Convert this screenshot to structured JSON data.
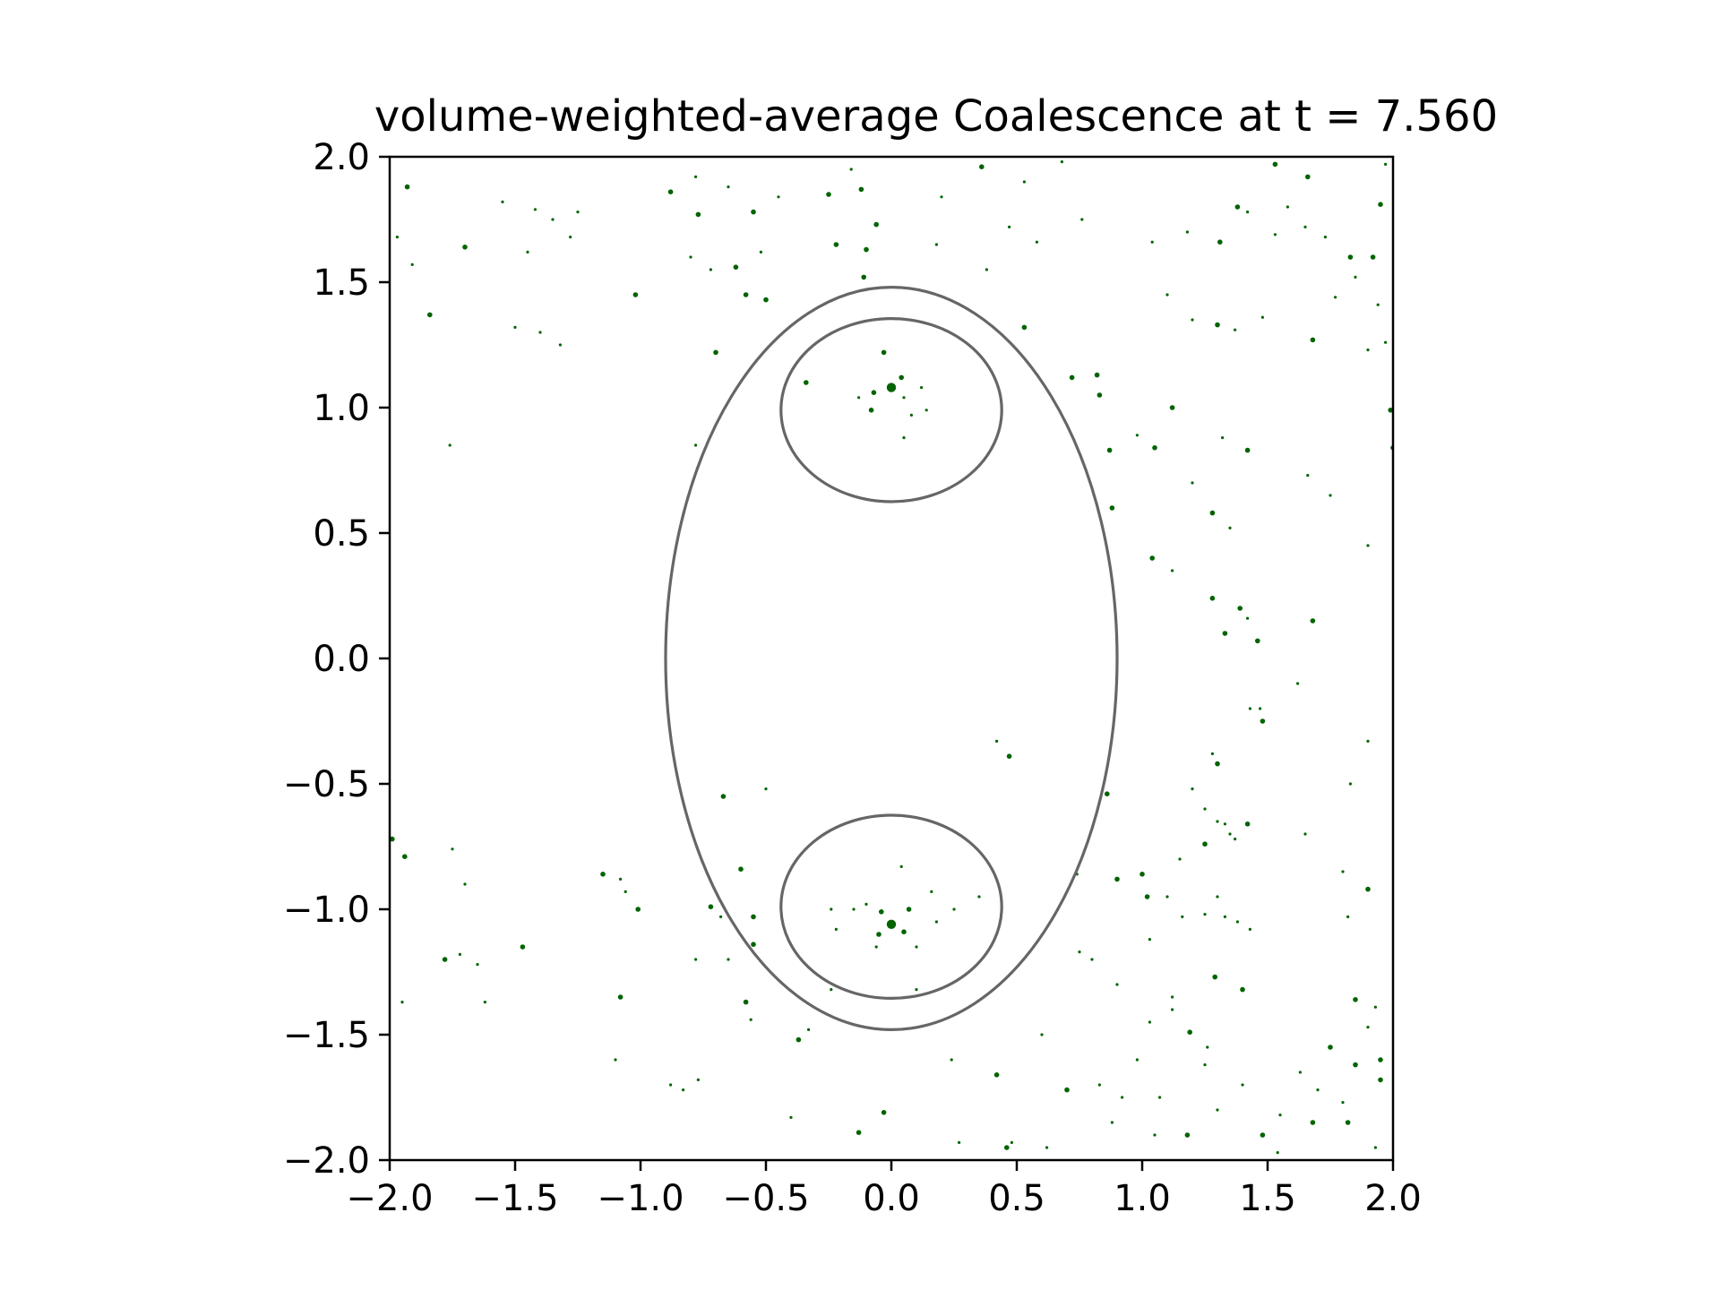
{
  "chart_data": {
    "type": "scatter",
    "title": "volume-weighted-average Coalescence at t = 7.560",
    "xlabel": "",
    "ylabel": "",
    "xlim": [
      -2.0,
      2.0
    ],
    "ylim": [
      -2.0,
      2.0
    ],
    "grid": false,
    "aspect": "equal",
    "x_ticks": [
      -2.0,
      -1.5,
      -1.0,
      -0.5,
      0.0,
      0.5,
      1.0,
      1.5,
      2.0
    ],
    "x_tick_labels": [
      "−2.0",
      "−1.5",
      "−1.0",
      "−0.5",
      "0.0",
      "0.5",
      "1.0",
      "1.5",
      "2.0"
    ],
    "y_ticks": [
      2.0,
      1.5,
      1.0,
      0.5,
      0.0,
      -0.5,
      -1.0,
      -1.5,
      -2.0
    ],
    "y_tick_labels": [
      "2.0",
      "1.5",
      "1.0",
      "0.5",
      "0.0",
      "−0.5",
      "−1.0",
      "−1.5",
      "−2.0"
    ],
    "point_color": "#006400",
    "outline_color": "#666666",
    "outlines": [
      {
        "shape": "ellipse",
        "cx": 0.0,
        "cy": 0.0,
        "rx": 0.9,
        "ry": 1.48
      },
      {
        "shape": "ellipse",
        "cx": 0.0,
        "cy": 0.99,
        "rx": 0.44,
        "ry": 0.365
      },
      {
        "shape": "ellipse",
        "cx": 0.0,
        "cy": -0.99,
        "rx": 0.44,
        "ry": 0.365
      }
    ],
    "points": [
      {
        "x": 0.0,
        "y": 1.08,
        "w": 3
      },
      {
        "x": -0.07,
        "y": 1.06,
        "w": 2
      },
      {
        "x": 0.04,
        "y": 1.12,
        "w": 2
      },
      {
        "x": -0.08,
        "y": 0.99,
        "w": 2
      },
      {
        "x": -0.03,
        "y": 1.22,
        "w": 2
      },
      {
        "x": -0.13,
        "y": 1.04,
        "w": 1
      },
      {
        "x": 0.05,
        "y": 1.04,
        "w": 1
      },
      {
        "x": 0.08,
        "y": 0.97,
        "w": 1
      },
      {
        "x": 0.05,
        "y": 0.88,
        "w": 1
      },
      {
        "x": 0.12,
        "y": 1.08,
        "w": 1
      },
      {
        "x": 0.14,
        "y": 0.99,
        "w": 1
      },
      {
        "x": 0.0,
        "y": -1.06,
        "w": 3
      },
      {
        "x": -0.04,
        "y": -1.01,
        "w": 2
      },
      {
        "x": 0.07,
        "y": -1.0,
        "w": 2
      },
      {
        "x": -0.05,
        "y": -1.1,
        "w": 2
      },
      {
        "x": 0.05,
        "y": -1.09,
        "w": 2
      },
      {
        "x": -0.24,
        "y": -1.0,
        "w": 1
      },
      {
        "x": -0.15,
        "y": -1.0,
        "w": 1
      },
      {
        "x": 0.16,
        "y": -0.93,
        "w": 1
      },
      {
        "x": 0.18,
        "y": -1.05,
        "w": 1
      },
      {
        "x": 0.25,
        "y": -1.0,
        "w": 1
      },
      {
        "x": 0.1,
        "y": -1.15,
        "w": 1
      },
      {
        "x": -0.1,
        "y": -0.98,
        "w": 1
      },
      {
        "x": 0.04,
        "y": -0.83,
        "w": 1
      },
      {
        "x": -0.06,
        "y": -1.15,
        "w": 1
      },
      {
        "x": 0.1,
        "y": -1.32,
        "w": 1
      },
      {
        "x": -0.22,
        "y": -1.08,
        "w": 1
      },
      {
        "x": -0.24,
        "y": -1.32,
        "w": 1
      },
      {
        "x": 0.35,
        "y": -0.95,
        "w": 1
      },
      {
        "x": -1.93,
        "y": 1.88,
        "w": 2
      },
      {
        "x": -1.84,
        "y": 1.37,
        "w": 2
      },
      {
        "x": -1.7,
        "y": 1.64,
        "w": 2
      },
      {
        "x": -1.97,
        "y": 1.68,
        "w": 1
      },
      {
        "x": -1.91,
        "y": 1.57,
        "w": 1
      },
      {
        "x": -1.76,
        "y": 0.85,
        "w": 1
      },
      {
        "x": -1.55,
        "y": 1.82,
        "w": 1
      },
      {
        "x": -1.42,
        "y": 1.79,
        "w": 1
      },
      {
        "x": -1.35,
        "y": 1.75,
        "w": 1
      },
      {
        "x": -1.28,
        "y": 1.68,
        "w": 1
      },
      {
        "x": -1.25,
        "y": 1.78,
        "w": 1
      },
      {
        "x": -1.5,
        "y": 1.32,
        "w": 1
      },
      {
        "x": -1.4,
        "y": 1.3,
        "w": 1
      },
      {
        "x": -1.32,
        "y": 1.25,
        "w": 1
      },
      {
        "x": -1.45,
        "y": 1.62,
        "w": 1
      },
      {
        "x": -1.02,
        "y": 1.45,
        "w": 2
      },
      {
        "x": -0.88,
        "y": 1.86,
        "w": 2
      },
      {
        "x": -0.77,
        "y": 1.77,
        "w": 2
      },
      {
        "x": -0.55,
        "y": 1.78,
        "w": 2
      },
      {
        "x": -0.45,
        "y": 1.84,
        "w": 1
      },
      {
        "x": -0.78,
        "y": 1.92,
        "w": 1
      },
      {
        "x": -0.65,
        "y": 1.88,
        "w": 1
      },
      {
        "x": -0.62,
        "y": 1.56,
        "w": 2
      },
      {
        "x": -0.72,
        "y": 1.55,
        "w": 1
      },
      {
        "x": -0.8,
        "y": 1.6,
        "w": 1
      },
      {
        "x": -0.52,
        "y": 1.62,
        "w": 1
      },
      {
        "x": -0.58,
        "y": 1.45,
        "w": 2
      },
      {
        "x": -0.5,
        "y": 1.43,
        "w": 2
      },
      {
        "x": -0.25,
        "y": 1.85,
        "w": 2
      },
      {
        "x": -0.12,
        "y": 1.87,
        "w": 2
      },
      {
        "x": -0.06,
        "y": 1.73,
        "w": 2
      },
      {
        "x": -0.22,
        "y": 1.65,
        "w": 2
      },
      {
        "x": -0.11,
        "y": 1.52,
        "w": 2
      },
      {
        "x": -0.1,
        "y": 1.63,
        "w": 2
      },
      {
        "x": -0.16,
        "y": 1.95,
        "w": 1
      },
      {
        "x": 0.2,
        "y": 1.84,
        "w": 1
      },
      {
        "x": 0.36,
        "y": 1.96,
        "w": 2
      },
      {
        "x": 0.53,
        "y": 1.9,
        "w": 1
      },
      {
        "x": 0.58,
        "y": 1.66,
        "w": 1
      },
      {
        "x": 0.47,
        "y": 1.72,
        "w": 1
      },
      {
        "x": 0.18,
        "y": 1.65,
        "w": 1
      },
      {
        "x": 0.38,
        "y": 1.55,
        "w": 1
      },
      {
        "x": 0.68,
        "y": 1.98,
        "w": 1
      },
      {
        "x": 0.76,
        "y": 1.75,
        "w": 1
      },
      {
        "x": -0.7,
        "y": 1.22,
        "w": 2
      },
      {
        "x": 0.53,
        "y": 1.32,
        "w": 2
      },
      {
        "x": 0.72,
        "y": 1.12,
        "w": 2
      },
      {
        "x": 0.82,
        "y": 1.13,
        "w": 2
      },
      {
        "x": 0.83,
        "y": 1.05,
        "w": 2
      },
      {
        "x": 0.87,
        "y": 0.83,
        "w": 2
      },
      {
        "x": 0.88,
        "y": 0.6,
        "w": 2
      },
      {
        "x": -0.78,
        "y": 0.85,
        "w": 1
      },
      {
        "x": -0.34,
        "y": 1.1,
        "w": 2
      },
      {
        "x": 1.12,
        "y": 1.0,
        "w": 2
      },
      {
        "x": 1.05,
        "y": 0.84,
        "w": 2
      },
      {
        "x": 0.98,
        "y": 0.89,
        "w": 1
      },
      {
        "x": 1.3,
        "y": 1.33,
        "w": 2
      },
      {
        "x": 1.37,
        "y": 1.31,
        "w": 1
      },
      {
        "x": 1.48,
        "y": 1.36,
        "w": 1
      },
      {
        "x": 1.42,
        "y": 0.83,
        "w": 2
      },
      {
        "x": 1.32,
        "y": 0.88,
        "w": 1
      },
      {
        "x": 1.28,
        "y": 0.58,
        "w": 2
      },
      {
        "x": 1.35,
        "y": 0.52,
        "w": 1
      },
      {
        "x": 1.2,
        "y": 0.7,
        "w": 1
      },
      {
        "x": 1.04,
        "y": 0.4,
        "w": 2
      },
      {
        "x": 1.12,
        "y": 0.35,
        "w": 1
      },
      {
        "x": 1.28,
        "y": 0.24,
        "w": 2
      },
      {
        "x": 1.33,
        "y": 0.1,
        "w": 2
      },
      {
        "x": 1.39,
        "y": 0.2,
        "w": 2
      },
      {
        "x": 1.46,
        "y": 0.07,
        "w": 2
      },
      {
        "x": 1.42,
        "y": 0.16,
        "w": 1
      },
      {
        "x": 1.68,
        "y": 1.27,
        "w": 2
      },
      {
        "x": 1.77,
        "y": 1.44,
        "w": 1
      },
      {
        "x": 1.85,
        "y": 1.52,
        "w": 1
      },
      {
        "x": 1.9,
        "y": 1.23,
        "w": 1
      },
      {
        "x": 1.94,
        "y": 1.41,
        "w": 1
      },
      {
        "x": 1.97,
        "y": 1.26,
        "w": 1
      },
      {
        "x": 1.99,
        "y": 0.99,
        "w": 2
      },
      {
        "x": 2.0,
        "y": 0.84,
        "w": 2
      },
      {
        "x": 1.66,
        "y": 0.73,
        "w": 1
      },
      {
        "x": 1.75,
        "y": 0.65,
        "w": 1
      },
      {
        "x": 1.9,
        "y": 0.45,
        "w": 1
      },
      {
        "x": 1.68,
        "y": 0.15,
        "w": 2
      },
      {
        "x": 1.9,
        "y": -0.33,
        "w": 1
      },
      {
        "x": 1.62,
        "y": -0.1,
        "w": 1
      },
      {
        "x": 1.31,
        "y": 1.66,
        "w": 2
      },
      {
        "x": 1.42,
        "y": 1.78,
        "w": 1
      },
      {
        "x": 1.53,
        "y": 1.69,
        "w": 1
      },
      {
        "x": 1.58,
        "y": 1.8,
        "w": 1
      },
      {
        "x": 1.53,
        "y": 1.97,
        "w": 2
      },
      {
        "x": 1.66,
        "y": 1.92,
        "w": 2
      },
      {
        "x": 1.83,
        "y": 1.6,
        "w": 2
      },
      {
        "x": 1.92,
        "y": 1.6,
        "w": 2
      },
      {
        "x": 1.95,
        "y": 1.81,
        "w": 2
      },
      {
        "x": 1.97,
        "y": 1.97,
        "w": 1
      },
      {
        "x": 1.38,
        "y": 1.8,
        "w": 2
      },
      {
        "x": 1.65,
        "y": 1.72,
        "w": 1
      },
      {
        "x": 1.73,
        "y": 1.68,
        "w": 1
      },
      {
        "x": 1.18,
        "y": 1.7,
        "w": 1
      },
      {
        "x": 1.04,
        "y": 1.66,
        "w": 1
      },
      {
        "x": 1.2,
        "y": 1.35,
        "w": 1
      },
      {
        "x": 1.1,
        "y": 1.45,
        "w": 1
      },
      {
        "x": 0.47,
        "y": -0.39,
        "w": 2
      },
      {
        "x": 0.42,
        "y": -0.33,
        "w": 1
      },
      {
        "x": 0.86,
        "y": -0.54,
        "w": 2
      },
      {
        "x": 0.74,
        "y": -0.86,
        "w": 1
      },
      {
        "x": 0.9,
        "y": -0.88,
        "w": 2
      },
      {
        "x": 1.0,
        "y": -0.86,
        "w": 2
      },
      {
        "x": 1.02,
        "y": -0.95,
        "w": 2
      },
      {
        "x": 1.1,
        "y": -0.95,
        "w": 1
      },
      {
        "x": 1.16,
        "y": -1.03,
        "w": 1
      },
      {
        "x": 0.9,
        "y": -1.3,
        "w": 1
      },
      {
        "x": 0.8,
        "y": -1.2,
        "w": 1
      },
      {
        "x": 0.75,
        "y": -1.17,
        "w": 1
      },
      {
        "x": 1.03,
        "y": -1.12,
        "w": 1
      },
      {
        "x": 1.3,
        "y": -0.95,
        "w": 1
      },
      {
        "x": 1.25,
        "y": -1.02,
        "w": 1
      },
      {
        "x": 1.38,
        "y": -1.05,
        "w": 1
      },
      {
        "x": 1.43,
        "y": -1.08,
        "w": 1
      },
      {
        "x": 1.33,
        "y": -1.03,
        "w": 1
      },
      {
        "x": 1.3,
        "y": -0.42,
        "w": 2
      },
      {
        "x": 1.28,
        "y": -0.38,
        "w": 1
      },
      {
        "x": 1.2,
        "y": -0.52,
        "w": 1
      },
      {
        "x": 1.25,
        "y": -0.6,
        "w": 1
      },
      {
        "x": 1.3,
        "y": -0.65,
        "w": 1
      },
      {
        "x": 1.35,
        "y": -0.7,
        "w": 1
      },
      {
        "x": 1.42,
        "y": -0.66,
        "w": 2
      },
      {
        "x": 1.37,
        "y": -0.72,
        "w": 1
      },
      {
        "x": 1.25,
        "y": -0.74,
        "w": 2
      },
      {
        "x": 1.33,
        "y": -0.66,
        "w": 1
      },
      {
        "x": 1.15,
        "y": -0.8,
        "w": 1
      },
      {
        "x": 1.48,
        "y": -0.25,
        "w": 2
      },
      {
        "x": 1.43,
        "y": -0.2,
        "w": 1
      },
      {
        "x": 1.47,
        "y": -0.2,
        "w": 1
      },
      {
        "x": 1.65,
        "y": -0.7,
        "w": 1
      },
      {
        "x": 1.83,
        "y": -0.5,
        "w": 1
      },
      {
        "x": 1.9,
        "y": -0.92,
        "w": 2
      },
      {
        "x": 1.8,
        "y": -0.85,
        "w": 1
      },
      {
        "x": 1.82,
        "y": -1.03,
        "w": 1
      },
      {
        "x": 1.29,
        "y": -1.27,
        "w": 2
      },
      {
        "x": 1.4,
        "y": -1.32,
        "w": 2
      },
      {
        "x": 1.12,
        "y": -1.35,
        "w": 1
      },
      {
        "x": 1.12,
        "y": -1.4,
        "w": 1
      },
      {
        "x": 1.19,
        "y": -1.49,
        "w": 2
      },
      {
        "x": 1.03,
        "y": -1.45,
        "w": 1
      },
      {
        "x": 1.26,
        "y": -1.55,
        "w": 1
      },
      {
        "x": 1.25,
        "y": -1.62,
        "w": 1
      },
      {
        "x": 1.85,
        "y": -1.36,
        "w": 2
      },
      {
        "x": 1.93,
        "y": -1.39,
        "w": 1
      },
      {
        "x": 1.9,
        "y": -1.47,
        "w": 1
      },
      {
        "x": 1.75,
        "y": -1.55,
        "w": 2
      },
      {
        "x": 1.85,
        "y": -1.62,
        "w": 2
      },
      {
        "x": 1.95,
        "y": -1.6,
        "w": 2
      },
      {
        "x": 1.95,
        "y": -1.68,
        "w": 2
      },
      {
        "x": 1.8,
        "y": -1.77,
        "w": 1
      },
      {
        "x": 1.7,
        "y": -1.72,
        "w": 1
      },
      {
        "x": 1.63,
        "y": -1.65,
        "w": 1
      },
      {
        "x": 1.55,
        "y": -1.82,
        "w": 1
      },
      {
        "x": 1.68,
        "y": -1.85,
        "w": 2
      },
      {
        "x": 1.82,
        "y": -1.85,
        "w": 2
      },
      {
        "x": 1.93,
        "y": -1.95,
        "w": 1
      },
      {
        "x": 1.48,
        "y": -1.9,
        "w": 2
      },
      {
        "x": 1.54,
        "y": -1.97,
        "w": 1
      },
      {
        "x": 1.18,
        "y": -1.9,
        "w": 2
      },
      {
        "x": 1.05,
        "y": -1.9,
        "w": 1
      },
      {
        "x": 1.4,
        "y": -1.7,
        "w": 1
      },
      {
        "x": 1.3,
        "y": -1.8,
        "w": 1
      },
      {
        "x": 0.88,
        "y": -1.85,
        "w": 1
      },
      {
        "x": 0.92,
        "y": -1.75,
        "w": 1
      },
      {
        "x": 1.07,
        "y": -1.75,
        "w": 1
      },
      {
        "x": 0.98,
        "y": -1.6,
        "w": 1
      },
      {
        "x": 0.83,
        "y": -1.7,
        "w": 1
      },
      {
        "x": 0.42,
        "y": -1.66,
        "w": 2
      },
      {
        "x": 0.7,
        "y": -1.72,
        "w": 2
      },
      {
        "x": 0.24,
        "y": -1.6,
        "w": 1
      },
      {
        "x": 0.6,
        "y": -1.5,
        "w": 1
      },
      {
        "x": 0.48,
        "y": -1.93,
        "w": 1
      },
      {
        "x": 0.46,
        "y": -1.95,
        "w": 2
      },
      {
        "x": 0.27,
        "y": -1.93,
        "w": 1
      },
      {
        "x": 0.62,
        "y": -1.95,
        "w": 1
      },
      {
        "x": -0.13,
        "y": -1.89,
        "w": 2
      },
      {
        "x": -0.03,
        "y": -1.81,
        "w": 2
      },
      {
        "x": -0.4,
        "y": -1.83,
        "w": 1
      },
      {
        "x": -0.77,
        "y": -1.68,
        "w": 1
      },
      {
        "x": -0.83,
        "y": -1.72,
        "w": 1
      },
      {
        "x": -0.88,
        "y": -1.7,
        "w": 1
      },
      {
        "x": -1.1,
        "y": -1.6,
        "w": 1
      },
      {
        "x": -0.56,
        "y": -1.44,
        "w": 1
      },
      {
        "x": -0.37,
        "y": -1.52,
        "w": 2
      },
      {
        "x": -0.33,
        "y": -1.48,
        "w": 1
      },
      {
        "x": -0.58,
        "y": -1.37,
        "w": 2
      },
      {
        "x": -1.08,
        "y": -1.35,
        "w": 2
      },
      {
        "x": -1.47,
        "y": -1.15,
        "w": 2
      },
      {
        "x": -1.78,
        "y": -1.2,
        "w": 2
      },
      {
        "x": -1.72,
        "y": -1.18,
        "w": 1
      },
      {
        "x": -1.65,
        "y": -1.22,
        "w": 1
      },
      {
        "x": -1.62,
        "y": -1.37,
        "w": 1
      },
      {
        "x": -1.95,
        "y": -1.37,
        "w": 1
      },
      {
        "x": -1.94,
        "y": -0.79,
        "w": 2
      },
      {
        "x": -1.99,
        "y": -0.72,
        "w": 2
      },
      {
        "x": -1.75,
        "y": -0.76,
        "w": 1
      },
      {
        "x": -1.7,
        "y": -0.9,
        "w": 1
      },
      {
        "x": -1.15,
        "y": -0.86,
        "w": 2
      },
      {
        "x": -1.08,
        "y": -0.88,
        "w": 1
      },
      {
        "x": -1.06,
        "y": -0.93,
        "w": 1
      },
      {
        "x": -1.01,
        "y": -1.0,
        "w": 2
      },
      {
        "x": -0.72,
        "y": -0.99,
        "w": 2
      },
      {
        "x": -0.68,
        "y": -1.03,
        "w": 1
      },
      {
        "x": -0.67,
        "y": -0.55,
        "w": 2
      },
      {
        "x": -0.5,
        "y": -0.52,
        "w": 1
      },
      {
        "x": -0.6,
        "y": -0.84,
        "w": 2
      },
      {
        "x": -0.55,
        "y": -1.03,
        "w": 2
      },
      {
        "x": -0.55,
        "y": -1.14,
        "w": 2
      },
      {
        "x": -0.65,
        "y": -1.2,
        "w": 1
      },
      {
        "x": -0.78,
        "y": -1.2,
        "w": 1
      }
    ]
  }
}
